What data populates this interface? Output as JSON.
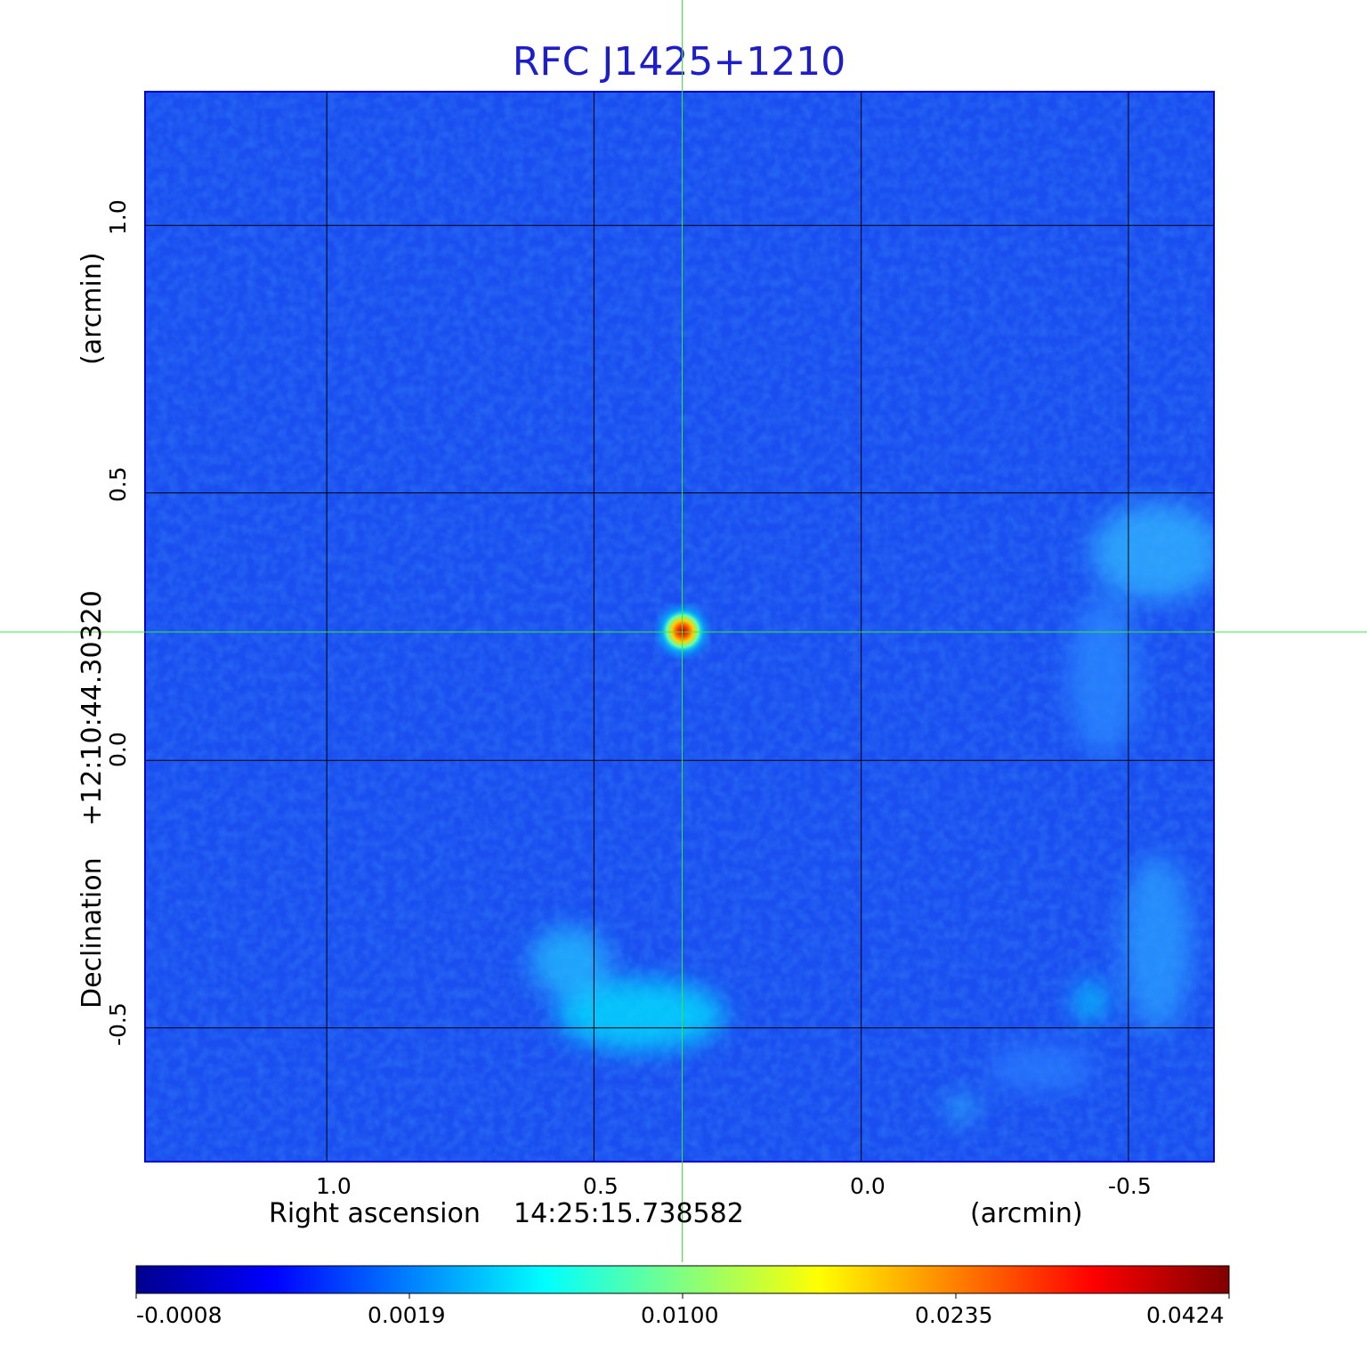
{
  "chart_data": {
    "type": "heatmap",
    "title": "RFC J1425+1210",
    "x_axis": {
      "label_prefix": "Right ascension",
      "label_value": "14:25:15.738582",
      "label_unit": "(arcmin)",
      "ticks": [
        "1.0",
        "0.5",
        "0.0",
        "-0.5"
      ],
      "tick_values": [
        1.0,
        0.5,
        0.0,
        -0.5
      ],
      "range": [
        1.34,
        -0.66
      ]
    },
    "y_axis": {
      "label_prefix": "Declination",
      "label_value": "+12:10:44.30320",
      "label_unit": "(arcmin)",
      "ticks": [
        "1.0",
        "0.5",
        "0.0",
        "-0.5"
      ],
      "tick_values": [
        1.0,
        0.5,
        0.0,
        -0.5
      ],
      "range": [
        -0.75,
        1.25
      ]
    },
    "grid": true,
    "crosshair": {
      "x": 0.335,
      "y": 0.24
    },
    "colorbar": {
      "ticks": [
        "-0.0008",
        "0.0019",
        "0.0100",
        "0.0235",
        "0.0424"
      ],
      "colormap": [
        "#00008f",
        "#0000ff",
        "#0080ff",
        "#00ffff",
        "#80ff80",
        "#ffff00",
        "#ff8000",
        "#ff0000",
        "#800000"
      ]
    },
    "colors": {
      "background": "#1a4ef0",
      "grid": "#000000",
      "crosshair": "#33ee33",
      "frame": "#0000cc"
    }
  }
}
